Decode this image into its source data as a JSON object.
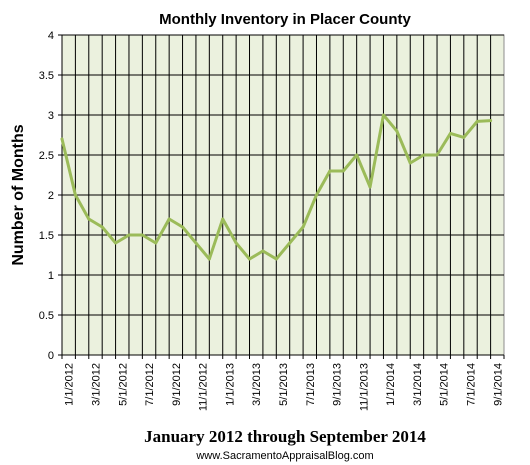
{
  "chart_data": {
    "type": "line",
    "title": "Monthly Inventory in Placer County",
    "ylabel": "Number of Months",
    "xlabel": "January 2012 through September 2014",
    "source": "www.SacramentoAppraisalBlog.com",
    "ylim": [
      0,
      4
    ],
    "yticks": [
      "0",
      "0.5",
      "1",
      "1.5",
      "2",
      "2.5",
      "3",
      "3.5",
      "4"
    ],
    "xtick_labels": [
      "1/1/2012",
      "3/1/2012",
      "5/1/2012",
      "7/1/2012",
      "9/1/2012",
      "11/1/2012",
      "1/1/2013",
      "3/1/2013",
      "5/1/2013",
      "7/1/2013",
      "9/1/2013",
      "11/1/2013",
      "1/1/2014",
      "3/1/2014",
      "5/1/2014",
      "7/1/2014",
      "9/1/2014"
    ],
    "x": [
      "1/1/2012",
      "2/1/2012",
      "3/1/2012",
      "4/1/2012",
      "5/1/2012",
      "6/1/2012",
      "7/1/2012",
      "8/1/2012",
      "9/1/2012",
      "10/1/2012",
      "11/1/2012",
      "12/1/2012",
      "1/1/2013",
      "2/1/2013",
      "3/1/2013",
      "4/1/2013",
      "5/1/2013",
      "6/1/2013",
      "7/1/2013",
      "8/1/2013",
      "9/1/2013",
      "10/1/2013",
      "11/1/2013",
      "12/1/2013",
      "1/1/2014",
      "2/1/2014",
      "3/1/2014",
      "4/1/2014",
      "5/1/2014",
      "6/1/2014",
      "7/1/2014",
      "8/1/2014",
      "9/1/2014"
    ],
    "series": [
      {
        "values": [
          2.7,
          2.0,
          1.7,
          1.6,
          1.4,
          1.5,
          1.5,
          1.4,
          1.7,
          1.6,
          1.4,
          1.2,
          1.7,
          1.4,
          1.2,
          1.3,
          1.2,
          1.4,
          1.6,
          2.0,
          2.3,
          2.3,
          2.5,
          2.1,
          3.0,
          2.8,
          2.4,
          2.5,
          2.5,
          2.77,
          2.72,
          2.92,
          2.93
        ]
      }
    ],
    "grid": true,
    "colors": {
      "plot_background": "#ebf1de",
      "line": "#9bbb59",
      "gridline": "#000000"
    }
  }
}
